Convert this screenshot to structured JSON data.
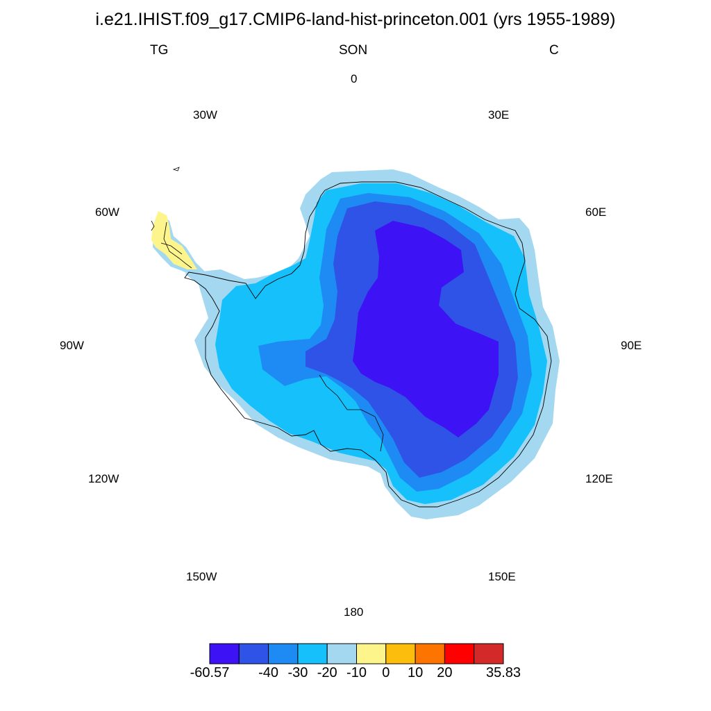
{
  "title": "i.e21.IHIST.f09_g17.CMIP6-land-hist-princeton.001 (yrs 1955-1989)",
  "left_label": "TG",
  "center_label": "SON",
  "right_label": "C",
  "longitude_labels": {
    "lon0": "0",
    "lon30e": "30E",
    "lon60e": "60E",
    "lon90e": "90E",
    "lon120e": "120E",
    "lon150e": "150E",
    "lon180": "180",
    "lon150w": "150W",
    "lon120w": "120W",
    "lon90w": "90W",
    "lon60w": "60W",
    "lon30w": "30W"
  },
  "colors": {
    "ocean": "#ffffff",
    "coastline": "#000000",
    "bins": [
      "#3d13f5",
      "#2e53e6",
      "#1e8bf5",
      "#16c0fb",
      "#a4d8f1",
      "#fdf58b",
      "#fdbd0d",
      "#fe7400",
      "#fe0000",
      "#d32928"
    ]
  },
  "colorbar": {
    "labels": [
      "-60.57",
      "-40",
      "-30",
      "-20",
      "-10",
      "0",
      "10",
      "20",
      "35.83"
    ],
    "min": -60.57,
    "max": 35.83
  }
}
